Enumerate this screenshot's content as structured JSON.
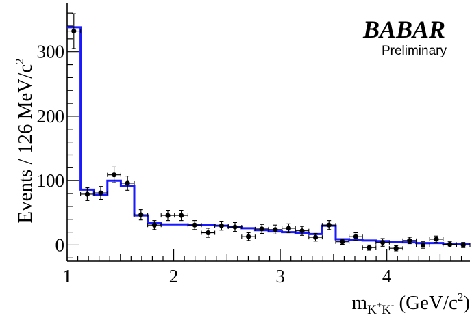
{
  "chart_data": {
    "type": "scatter",
    "title": "",
    "xlabel_base": "m",
    "xlabel_sub": "K",
    "xlabel_sub_sup1": "+",
    "xlabel_sub_mid": "K",
    "xlabel_sub_sup2": "-",
    "xlabel_rest": " (GeV/c",
    "xlabel_sup": "2",
    "xlabel_close": ")",
    "ylabel_main": "Events / 126 MeV/c",
    "ylabel_sup": "2",
    "xlim": [
      1.0,
      4.78
    ],
    "ylim": [
      -25,
      375
    ],
    "x_ticks": [
      1,
      2,
      3,
      4
    ],
    "x_tick_labels": [
      "1",
      "2",
      "3",
      "4"
    ],
    "y_ticks": [
      0,
      100,
      200,
      300
    ],
    "y_tick_labels": [
      "0",
      "100",
      "200",
      "300"
    ],
    "logo": {
      "main": "BABAR",
      "sub": "Preliminary"
    },
    "series": [
      {
        "kind": "data",
        "x_halfwidth": 0.063,
        "points": [
          {
            "x": 1.063,
            "y": 332,
            "err": 27
          },
          {
            "x": 1.189,
            "y": 79,
            "err": 10
          },
          {
            "x": 1.315,
            "y": 81,
            "err": 10
          },
          {
            "x": 1.441,
            "y": 109,
            "err": 12
          },
          {
            "x": 1.567,
            "y": 96,
            "err": 11
          },
          {
            "x": 1.693,
            "y": 47,
            "err": 8
          },
          {
            "x": 1.819,
            "y": 31,
            "err": 7
          },
          {
            "x": 1.945,
            "y": 46,
            "err": 8
          },
          {
            "x": 2.071,
            "y": 46,
            "err": 8
          },
          {
            "x": 2.197,
            "y": 31,
            "err": 7
          },
          {
            "x": 2.323,
            "y": 19,
            "err": 7
          },
          {
            "x": 2.449,
            "y": 30,
            "err": 7
          },
          {
            "x": 2.575,
            "y": 28,
            "err": 7
          },
          {
            "x": 2.701,
            "y": 13,
            "err": 6
          },
          {
            "x": 2.827,
            "y": 25,
            "err": 7
          },
          {
            "x": 2.953,
            "y": 24,
            "err": 7
          },
          {
            "x": 3.079,
            "y": 26,
            "err": 7
          },
          {
            "x": 3.205,
            "y": 22,
            "err": 7
          },
          {
            "x": 3.331,
            "y": 12,
            "err": 6
          },
          {
            "x": 3.457,
            "y": 31,
            "err": 7
          },
          {
            "x": 3.583,
            "y": 5,
            "err": 4
          },
          {
            "x": 3.709,
            "y": 13,
            "err": 6
          },
          {
            "x": 3.835,
            "y": -4,
            "err": 4
          },
          {
            "x": 3.961,
            "y": 4,
            "err": 6
          },
          {
            "x": 4.087,
            "y": -5,
            "err": 4
          },
          {
            "x": 4.213,
            "y": 7,
            "err": 5
          },
          {
            "x": 4.339,
            "y": 0,
            "err": 5
          },
          {
            "x": 4.465,
            "y": 9,
            "err": 5
          },
          {
            "x": 4.591,
            "y": 1,
            "err": 4
          },
          {
            "x": 4.717,
            "y": 0,
            "err": 4
          }
        ]
      },
      {
        "kind": "fit",
        "color": "#1a1aff",
        "bins": [
          {
            "x0": 1.0,
            "x1": 1.126,
            "y": 338
          },
          {
            "x0": 1.126,
            "x1": 1.252,
            "y": 86
          },
          {
            "x0": 1.252,
            "x1": 1.378,
            "y": 78
          },
          {
            "x0": 1.378,
            "x1": 1.504,
            "y": 100
          },
          {
            "x0": 1.504,
            "x1": 1.63,
            "y": 92
          },
          {
            "x0": 1.63,
            "x1": 1.756,
            "y": 46
          },
          {
            "x0": 1.756,
            "x1": 1.882,
            "y": 34
          },
          {
            "x0": 1.882,
            "x1": 2.008,
            "y": 32
          },
          {
            "x0": 2.008,
            "x1": 2.134,
            "y": 32
          },
          {
            "x0": 2.134,
            "x1": 2.26,
            "y": 31
          },
          {
            "x0": 2.26,
            "x1": 2.386,
            "y": 31
          },
          {
            "x0": 2.386,
            "x1": 2.512,
            "y": 30
          },
          {
            "x0": 2.512,
            "x1": 2.638,
            "y": 28
          },
          {
            "x0": 2.638,
            "x1": 2.764,
            "y": 26
          },
          {
            "x0": 2.764,
            "x1": 2.89,
            "y": 23
          },
          {
            "x0": 2.89,
            "x1": 3.016,
            "y": 21
          },
          {
            "x0": 3.016,
            "x1": 3.142,
            "y": 20
          },
          {
            "x0": 3.142,
            "x1": 3.268,
            "y": 18
          },
          {
            "x0": 3.268,
            "x1": 3.394,
            "y": 17
          },
          {
            "x0": 3.394,
            "x1": 3.52,
            "y": 30
          },
          {
            "x0": 3.52,
            "x1": 3.646,
            "y": 9
          },
          {
            "x0": 3.646,
            "x1": 3.772,
            "y": 8
          },
          {
            "x0": 3.772,
            "x1": 3.898,
            "y": 7
          },
          {
            "x0": 3.898,
            "x1": 4.024,
            "y": 6
          },
          {
            "x0": 4.024,
            "x1": 4.15,
            "y": 5
          },
          {
            "x0": 4.15,
            "x1": 4.276,
            "y": 4
          },
          {
            "x0": 4.276,
            "x1": 4.402,
            "y": 3
          },
          {
            "x0": 4.402,
            "x1": 4.528,
            "y": 3
          },
          {
            "x0": 4.528,
            "x1": 4.654,
            "y": 2
          },
          {
            "x0": 4.654,
            "x1": 4.78,
            "y": 1
          }
        ]
      }
    ]
  }
}
